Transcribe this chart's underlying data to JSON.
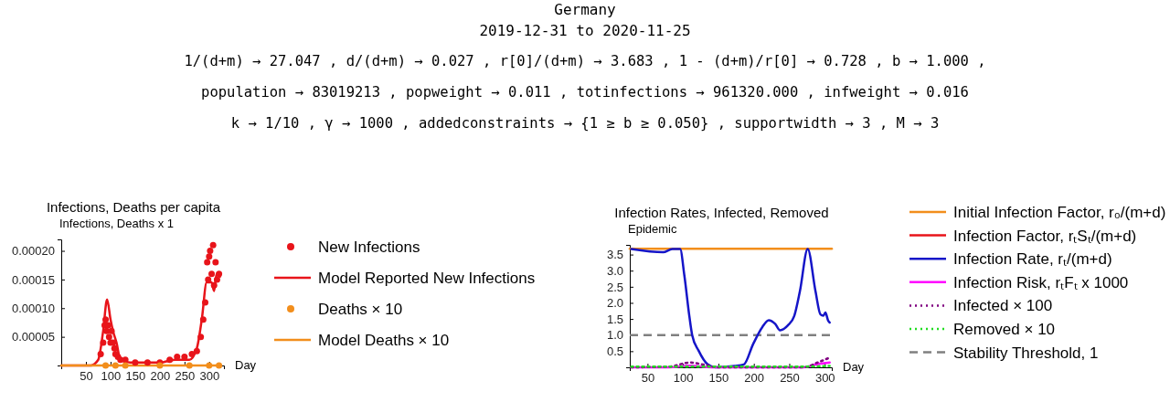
{
  "chart_data": [
    {
      "type": "other",
      "title": "Germany",
      "subtitle": "2019-12-31 to 2020-11-25",
      "annotations": [
        "1/(d+m) → 27.047 ,  d/(d+m) → 0.027 ,  r[0]/(d+m) → 3.683 ,  1 - (d+m)/r[0] → 0.728 ,  b → 1.000 ,",
        "population → 83019213 ,  popweight → 0.011 ,  totinfections → 961320.000 ,  infweight → 0.016",
        "k → 1/10 ,  γ → 1000 ,  addedconstraints → {1 ≥ b ≥ 0.050} ,  supportwidth → 3 ,  M → 3"
      ]
    },
    {
      "type": "scatter",
      "title": "Infections, Deaths per capita",
      "ylabel": "Infections, Deaths x 1",
      "xlabel": "Day",
      "xlim": [
        0,
        330
      ],
      "xticks": [
        50,
        100,
        150,
        200,
        250,
        300
      ],
      "ylim": [
        0,
        0.00022
      ],
      "yticks": [
        {
          "value": 5e-05,
          "label": "0.00005"
        },
        {
          "value": 0.0001,
          "label": "0.00010"
        },
        {
          "value": 0.00015,
          "label": "0.00015"
        },
        {
          "value": 0.0002,
          "label": "0.00020"
        }
      ],
      "legend": "right",
      "grid": false,
      "series": [
        {
          "name": "New Infections",
          "type": "scatter",
          "marker": "circle",
          "color": "#e8141a",
          "x": [
            80,
            85,
            88,
            90,
            92,
            95,
            97,
            100,
            102,
            105,
            108,
            110,
            115,
            120,
            130,
            150,
            175,
            200,
            220,
            235,
            250,
            265,
            275,
            283,
            288,
            292,
            296,
            298,
            300,
            302,
            305,
            308,
            310,
            313,
            316,
            320
          ],
          "values": [
            2e-05,
            4e-05,
            7e-05,
            8e-05,
            6e-05,
            7e-05,
            5e-05,
            4e-05,
            6e-05,
            4e-05,
            3e-05,
            2e-05,
            1.5e-05,
            1e-05,
            1e-05,
            5e-06,
            5e-06,
            5e-06,
            1e-05,
            1.5e-05,
            1.5e-05,
            2e-05,
            2.5e-05,
            5e-05,
            8e-05,
            0.00011,
            0.00018,
            0.00015,
            0.00019,
            0.0002,
            0.00016,
            0.00021,
            0.00014,
            0.00018,
            0.00015,
            0.00016
          ]
        },
        {
          "name": "Model Reported New Infections",
          "type": "line",
          "color": "#e8141a",
          "x": [
            0,
            60,
            75,
            85,
            93,
            100,
            105,
            112,
            120,
            140,
            200,
            230,
            260,
            275,
            285,
            295,
            305,
            310,
            315,
            322
          ],
          "values": [
            0,
            0,
            1e-05,
            6e-05,
            0.000115,
            8e-05,
            6e-05,
            4e-05,
            1e-05,
            5e-06,
            5e-06,
            1e-05,
            1e-05,
            3e-05,
            8e-05,
            0.000145,
            0.000145,
            0.00013,
            0.00016,
            0.000155
          ]
        },
        {
          "name": "Deaths × 10",
          "type": "scatter",
          "marker": "circle",
          "color": "#f28e1c",
          "x": [
            90,
            110,
            130,
            200,
            260,
            300,
            320
          ],
          "values": [
            0,
            0,
            0,
            0,
            0,
            0,
            0
          ]
        },
        {
          "name": "Model Deaths × 10",
          "type": "line",
          "color": "#f28e1c",
          "x": [
            0,
            90,
            110,
            150,
            250,
            300,
            322
          ],
          "values": [
            0,
            0,
            0,
            0,
            0,
            0,
            0
          ]
        }
      ]
    },
    {
      "type": "line",
      "title": "Infection Rates, Infected, Removed",
      "ylabel": "Epidemic",
      "xlabel": "Day",
      "xlim": [
        25,
        310
      ],
      "xticks": [
        50,
        100,
        150,
        200,
        250,
        300
      ],
      "ylim": [
        0,
        3.8
      ],
      "yticks": [
        {
          "value": 0.5,
          "label": "0.5"
        },
        {
          "value": 1,
          "label": "1.0"
        },
        {
          "value": 1.5,
          "label": "1.5"
        },
        {
          "value": 2,
          "label": "2.0"
        },
        {
          "value": 2.5,
          "label": "2.5"
        },
        {
          "value": 3,
          "label": "3.0"
        },
        {
          "value": 3.5,
          "label": "3.5"
        }
      ],
      "legend": "right",
      "grid": false,
      "ref_lines": [
        {
          "axis": "y",
          "value": 1,
          "label": "Stability Threshold, 1",
          "color": "#808080",
          "line_style": "dashed"
        }
      ],
      "series": [
        {
          "name": "Initial Infection Factor, r₀/(m+d)",
          "color": "#f28e1c",
          "x": [
            25,
            310
          ],
          "values": [
            3.68,
            3.68
          ]
        },
        {
          "name": "Infection Factor, rₜSₜ/(m+d)",
          "color": "#e8141a"
        },
        {
          "name": "Infection Rate, rₜ/(m+d)",
          "color": "#1515c8",
          "x": [
            27,
            72,
            85,
            96,
            102,
            109,
            113,
            122,
            135,
            146,
            173,
            186,
            199,
            212,
            221,
            230,
            237,
            248,
            257,
            265,
            276,
            287,
            294,
            298,
            301,
            305,
            307
          ],
          "values": [
            3.67,
            3.57,
            3.67,
            3.67,
            2.85,
            1.59,
            1.0,
            0.52,
            0.09,
            0,
            0.04,
            0.09,
            0.72,
            1.25,
            1.46,
            1.35,
            1.15,
            1.3,
            1.59,
            2.36,
            3.67,
            2.36,
            1.64,
            1.6,
            1.7,
            1.44,
            1.39
          ]
        },
        {
          "name": "Infection Risk, rₜFₜ x 1000",
          "color": "#ff00ff",
          "x": [
            27,
            80,
            110,
            140,
            270,
            290,
            307
          ],
          "values": [
            0,
            0,
            0.05,
            0,
            0,
            0.1,
            0.15
          ]
        },
        {
          "name": "Infected × 100",
          "color": "#800080",
          "line_style": "dotted",
          "x": [
            27,
            80,
            110,
            130,
            150,
            270,
            290,
            307
          ],
          "values": [
            0,
            0.02,
            0.15,
            0.08,
            0,
            0,
            0.15,
            0.3
          ]
        },
        {
          "name": "Removed × 10",
          "color": "#22dd22",
          "line_style": "dotted",
          "x": [
            27,
            150,
            250,
            307
          ],
          "values": [
            0.02,
            0.02,
            0.02,
            0.04
          ]
        }
      ]
    }
  ]
}
